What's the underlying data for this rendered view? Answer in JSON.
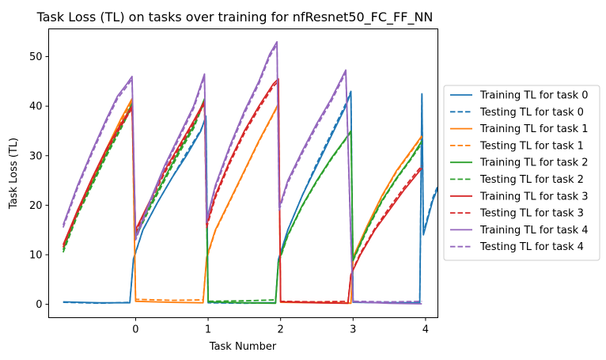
{
  "chart_data": {
    "type": "line",
    "title": "Task Loss (TL) on tasks over training for nfResnet50_FC_FF_NN",
    "xlabel": "Task Number",
    "ylabel": "Task Loss (TL)",
    "xlim": [
      -1.2,
      4.17
    ],
    "ylim": [
      -2.7,
      55.6
    ],
    "xticks": [
      0,
      1,
      2,
      3,
      4
    ],
    "yticks": [
      0,
      10,
      20,
      30,
      40,
      50
    ],
    "legend_position": "right",
    "grid": false,
    "series": [
      {
        "name": "Training TL for task 0",
        "color": "#1f77b4",
        "dash": "solid",
        "points": [
          [
            -1.0,
            0.5
          ],
          [
            -0.5,
            0.3
          ],
          [
            -0.08,
            0.3
          ],
          [
            -0.03,
            9.2
          ],
          [
            0.1,
            15
          ],
          [
            0.3,
            20.5
          ],
          [
            0.5,
            25.5
          ],
          [
            0.7,
            30
          ],
          [
            0.9,
            35
          ],
          [
            0.97,
            38
          ],
          [
            1.0,
            0.4
          ],
          [
            1.5,
            0.3
          ],
          [
            1.93,
            0.3
          ],
          [
            1.97,
            9
          ],
          [
            2.1,
            15
          ],
          [
            2.3,
            22
          ],
          [
            2.5,
            28
          ],
          [
            2.7,
            34
          ],
          [
            2.9,
            40
          ],
          [
            2.97,
            42.8
          ],
          [
            3.0,
            0.4
          ],
          [
            3.5,
            0.3
          ],
          [
            3.92,
            0.3
          ],
          [
            3.97,
            14
          ],
          [
            4.1,
            21
          ],
          [
            4.3,
            28
          ],
          [
            4.5,
            33
          ],
          [
            4.7,
            37
          ],
          [
            4.9,
            40.5
          ],
          [
            3.95,
            42.5
          ]
        ],
        "note": ""
      },
      {
        "name": "Testing TL for task 0",
        "color": "#1f77b4",
        "dash": "dashed",
        "points": [
          [
            -1.0,
            0.4
          ],
          [
            -0.5,
            0.2
          ],
          [
            -0.08,
            0.4
          ],
          [
            -0.03,
            9
          ],
          [
            0.1,
            15
          ],
          [
            0.3,
            20.5
          ],
          [
            0.5,
            25.5
          ],
          [
            0.7,
            30.5
          ],
          [
            0.9,
            35.2
          ],
          [
            0.97,
            37.5
          ],
          [
            1.0,
            0.3
          ],
          [
            1.5,
            0.2
          ],
          [
            1.93,
            0.3
          ],
          [
            1.97,
            9
          ],
          [
            2.1,
            15
          ],
          [
            2.3,
            22
          ],
          [
            2.5,
            28.5
          ],
          [
            2.7,
            34.5
          ],
          [
            2.9,
            40.5
          ],
          [
            2.97,
            43
          ],
          [
            3.0,
            0.4
          ],
          [
            3.5,
            0.3
          ],
          [
            3.92,
            0.3
          ],
          [
            3.97,
            14.5
          ],
          [
            4.1,
            21.5
          ],
          [
            4.3,
            28.5
          ],
          [
            4.5,
            33.5
          ],
          [
            4.7,
            37.5
          ],
          [
            4.9,
            41
          ],
          [
            3.95,
            42.3
          ]
        ]
      },
      {
        "name": "Training TL for task 1",
        "color": "#ff7f0e",
        "dash": "solid",
        "points": [
          [
            -1.0,
            11.5
          ],
          [
            -0.8,
            19
          ],
          [
            -0.6,
            25
          ],
          [
            -0.4,
            31.5
          ],
          [
            -0.2,
            37.5
          ],
          [
            -0.05,
            41.5
          ],
          [
            0.0,
            0.6
          ],
          [
            0.5,
            0.4
          ],
          [
            0.93,
            0.3
          ],
          [
            0.98,
            9.5
          ],
          [
            1.1,
            15
          ],
          [
            1.3,
            21
          ],
          [
            1.5,
            27
          ],
          [
            1.7,
            33
          ],
          [
            1.9,
            38.5
          ],
          [
            1.97,
            40.5
          ],
          [
            2.0,
            0.4
          ],
          [
            2.5,
            0.3
          ],
          [
            2.97,
            0.2
          ],
          [
            3.0,
            9.5
          ],
          [
            3.2,
            16
          ],
          [
            3.4,
            22
          ],
          [
            3.6,
            27
          ],
          [
            3.8,
            31
          ],
          [
            3.95,
            34
          ]
        ]
      },
      {
        "name": "Testing TL for task 1",
        "color": "#ff7f0e",
        "dash": "dashed",
        "points": [
          [
            -1.0,
            11
          ],
          [
            -0.8,
            18.5
          ],
          [
            -0.6,
            24.5
          ],
          [
            -0.4,
            31
          ],
          [
            -0.2,
            37
          ],
          [
            -0.05,
            41
          ],
          [
            0.0,
            1
          ],
          [
            0.5,
            0.8
          ],
          [
            0.93,
            0.9
          ],
          [
            0.98,
            9.2
          ],
          [
            1.1,
            14.8
          ],
          [
            1.3,
            20.8
          ],
          [
            1.5,
            26.8
          ],
          [
            1.7,
            32.8
          ],
          [
            1.9,
            38.3
          ],
          [
            1.97,
            40.3
          ],
          [
            2.0,
            0.5
          ],
          [
            2.5,
            0.4
          ],
          [
            2.97,
            0.3
          ],
          [
            3.0,
            9.2
          ],
          [
            3.2,
            15.8
          ],
          [
            3.4,
            21.8
          ],
          [
            3.6,
            26.8
          ],
          [
            3.8,
            30.8
          ],
          [
            3.95,
            33.8
          ]
        ]
      },
      {
        "name": "Training TL for task 2",
        "color": "#2ca02c",
        "dash": "solid",
        "points": [
          [
            -1.0,
            11
          ],
          [
            -0.8,
            18.5
          ],
          [
            -0.6,
            24.5
          ],
          [
            -0.4,
            30.5
          ],
          [
            -0.2,
            36
          ],
          [
            -0.05,
            40.5
          ],
          [
            0.0,
            14
          ],
          [
            0.2,
            20
          ],
          [
            0.4,
            25.5
          ],
          [
            0.6,
            31
          ],
          [
            0.8,
            36
          ],
          [
            0.95,
            41.5
          ],
          [
            1.0,
            0.5
          ],
          [
            1.5,
            0.3
          ],
          [
            1.93,
            0.2
          ],
          [
            1.97,
            8.5
          ],
          [
            2.1,
            14
          ],
          [
            2.3,
            20
          ],
          [
            2.5,
            25
          ],
          [
            2.7,
            29.5
          ],
          [
            2.9,
            33.5
          ],
          [
            2.97,
            35
          ],
          [
            3.0,
            9
          ],
          [
            3.2,
            15.5
          ],
          [
            3.4,
            21
          ],
          [
            3.6,
            25.5
          ],
          [
            3.8,
            29.5
          ],
          [
            3.95,
            33
          ]
        ]
      },
      {
        "name": "Testing TL for task 2",
        "color": "#2ca02c",
        "dash": "dashed",
        "points": [
          [
            -1.0,
            10.5
          ],
          [
            -0.8,
            18
          ],
          [
            -0.6,
            24
          ],
          [
            -0.4,
            30
          ],
          [
            -0.2,
            35.5
          ],
          [
            -0.05,
            40
          ],
          [
            0.0,
            13.5
          ],
          [
            0.2,
            19.5
          ],
          [
            0.4,
            25
          ],
          [
            0.6,
            30.5
          ],
          [
            0.8,
            35.5
          ],
          [
            0.95,
            41
          ],
          [
            1.0,
            0.6
          ],
          [
            1.5,
            0.7
          ],
          [
            1.93,
            0.9
          ],
          [
            1.97,
            8.2
          ],
          [
            2.1,
            13.8
          ],
          [
            2.3,
            19.8
          ],
          [
            2.5,
            24.8
          ],
          [
            2.7,
            29.3
          ],
          [
            2.9,
            33.3
          ],
          [
            2.97,
            34.8
          ],
          [
            3.0,
            8.8
          ],
          [
            3.2,
            15.2
          ],
          [
            3.4,
            20.8
          ],
          [
            3.6,
            25.3
          ],
          [
            3.8,
            29.3
          ],
          [
            3.95,
            32.5
          ]
        ]
      },
      {
        "name": "Training TL for task 3",
        "color": "#d62728",
        "dash": "solid",
        "points": [
          [
            -1.0,
            12
          ],
          [
            -0.8,
            19
          ],
          [
            -0.6,
            25.5
          ],
          [
            -0.4,
            31.5
          ],
          [
            -0.2,
            36.5
          ],
          [
            -0.05,
            40
          ],
          [
            0.0,
            15
          ],
          [
            0.2,
            21
          ],
          [
            0.4,
            27
          ],
          [
            0.6,
            32
          ],
          [
            0.8,
            37
          ],
          [
            0.95,
            41
          ],
          [
            0.98,
            16
          ],
          [
            1.1,
            22
          ],
          [
            1.3,
            29
          ],
          [
            1.5,
            35
          ],
          [
            1.7,
            40
          ],
          [
            1.9,
            44.5
          ],
          [
            1.97,
            45.5
          ],
          [
            2.0,
            0.5
          ],
          [
            2.5,
            0.3
          ],
          [
            2.93,
            0.2
          ],
          [
            2.97,
            6
          ],
          [
            3.1,
            10
          ],
          [
            3.3,
            15
          ],
          [
            3.5,
            19
          ],
          [
            3.7,
            23
          ],
          [
            3.95,
            27.5
          ]
        ]
      },
      {
        "name": "Testing TL for task 3",
        "color": "#d62728",
        "dash": "dashed",
        "points": [
          [
            -1.0,
            11.5
          ],
          [
            -0.8,
            18.5
          ],
          [
            -0.6,
            25
          ],
          [
            -0.4,
            31
          ],
          [
            -0.2,
            36
          ],
          [
            -0.05,
            39.5
          ],
          [
            0.0,
            14.5
          ],
          [
            0.2,
            20.5
          ],
          [
            0.4,
            26.5
          ],
          [
            0.6,
            31.5
          ],
          [
            0.8,
            36.5
          ],
          [
            0.95,
            40.5
          ],
          [
            0.98,
            15.5
          ],
          [
            1.1,
            21.5
          ],
          [
            1.3,
            28.5
          ],
          [
            1.5,
            34.5
          ],
          [
            1.7,
            39.5
          ],
          [
            1.9,
            44
          ],
          [
            1.97,
            45
          ],
          [
            2.0,
            0.6
          ],
          [
            2.5,
            0.5
          ],
          [
            2.93,
            0.6
          ],
          [
            2.97,
            6.2
          ],
          [
            3.1,
            10.3
          ],
          [
            3.3,
            15.3
          ],
          [
            3.5,
            19.5
          ],
          [
            3.7,
            23.5
          ],
          [
            3.95,
            28
          ]
        ]
      },
      {
        "name": "Training TL for task 4",
        "color": "#9467bd",
        "dash": "solid",
        "points": [
          [
            -1.0,
            16
          ],
          [
            -0.8,
            24
          ],
          [
            -0.6,
            31
          ],
          [
            -0.4,
            37.5
          ],
          [
            -0.25,
            42
          ],
          [
            -0.12,
            44.5
          ],
          [
            -0.05,
            46
          ],
          [
            0.0,
            13.5
          ],
          [
            0.2,
            21
          ],
          [
            0.4,
            28
          ],
          [
            0.6,
            34
          ],
          [
            0.8,
            40
          ],
          [
            0.95,
            46.5
          ],
          [
            0.98,
            17
          ],
          [
            1.1,
            24
          ],
          [
            1.3,
            32
          ],
          [
            1.5,
            39
          ],
          [
            1.7,
            45
          ],
          [
            1.85,
            50.5
          ],
          [
            1.95,
            53
          ],
          [
            1.98,
            19.5
          ],
          [
            2.1,
            25
          ],
          [
            2.3,
            31
          ],
          [
            2.5,
            36.5
          ],
          [
            2.7,
            41.5
          ],
          [
            2.9,
            47.3
          ],
          [
            2.97,
            13
          ],
          [
            3.0,
            0.5
          ],
          [
            3.5,
            0.2
          ],
          [
            3.95,
            0.1
          ]
        ]
      },
      {
        "name": "Testing TL for task 4",
        "color": "#9467bd",
        "dash": "dashed",
        "points": [
          [
            -1.0,
            15.5
          ],
          [
            -0.8,
            23.5
          ],
          [
            -0.6,
            30.5
          ],
          [
            -0.4,
            37
          ],
          [
            -0.25,
            41.5
          ],
          [
            -0.12,
            44
          ],
          [
            -0.05,
            45.5
          ],
          [
            0.0,
            13
          ],
          [
            0.2,
            20.5
          ],
          [
            0.4,
            27.5
          ],
          [
            0.6,
            33.5
          ],
          [
            0.8,
            39.5
          ],
          [
            0.95,
            46
          ],
          [
            0.98,
            16.5
          ],
          [
            1.1,
            23.5
          ],
          [
            1.3,
            31.5
          ],
          [
            1.5,
            38.5
          ],
          [
            1.7,
            44.5
          ],
          [
            1.85,
            50
          ],
          [
            1.95,
            52.5
          ],
          [
            1.98,
            19
          ],
          [
            2.1,
            24.5
          ],
          [
            2.3,
            30.5
          ],
          [
            2.5,
            36
          ],
          [
            2.7,
            41
          ],
          [
            2.9,
            46.8
          ],
          [
            2.97,
            12.5
          ],
          [
            3.0,
            0.6
          ],
          [
            3.5,
            0.5
          ],
          [
            3.95,
            0.6
          ]
        ]
      }
    ]
  }
}
